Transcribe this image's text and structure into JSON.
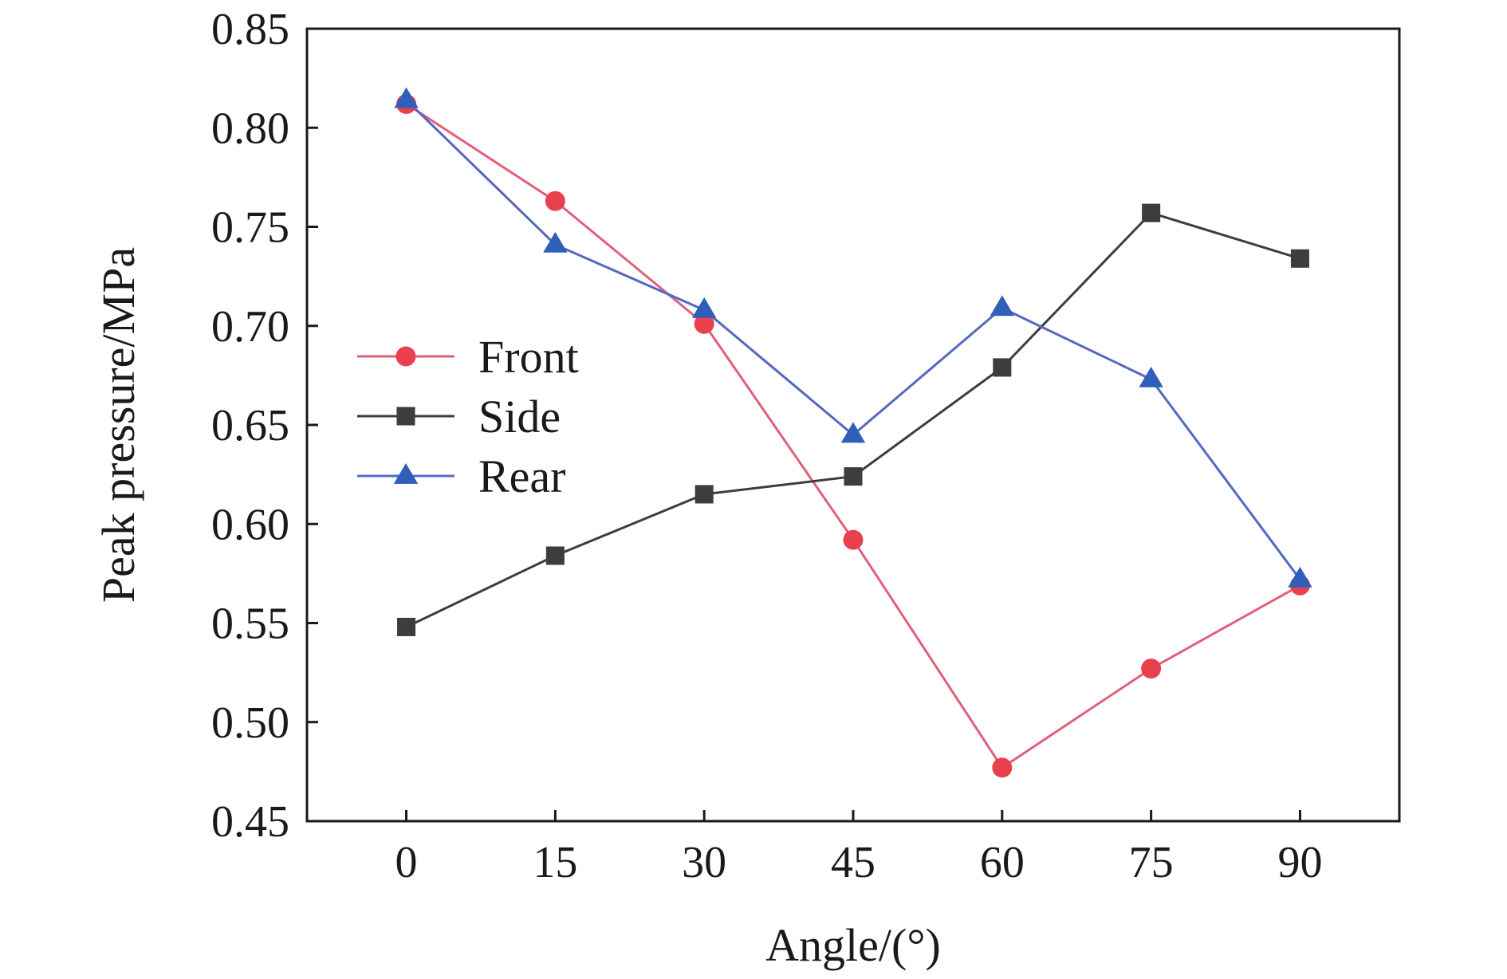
{
  "chart_data": {
    "type": "line",
    "xlabel": "Angle/(°)",
    "ylabel": "Peak pressure/MPa",
    "x": [
      0,
      15,
      30,
      45,
      60,
      75,
      90
    ],
    "xlim": [
      -10,
      100
    ],
    "ylim": [
      0.45,
      0.85
    ],
    "xticks": [
      "0",
      "15",
      "30",
      "45",
      "60",
      "75",
      "90"
    ],
    "yticks": [
      "0.45",
      "0.50",
      "0.55",
      "0.60",
      "0.65",
      "0.70",
      "0.75",
      "0.80",
      "0.85"
    ],
    "grid": false,
    "legend_position": "center-left",
    "series": [
      {
        "name": "Front",
        "marker": "circle",
        "line_color": "#e0607a",
        "marker_color": "#e8404d",
        "values": [
          0.812,
          0.763,
          0.701,
          0.592,
          0.477,
          0.527,
          0.569
        ]
      },
      {
        "name": "Side",
        "marker": "square",
        "line_color": "#3d3d3d",
        "marker_color": "#3d3d3d",
        "values": [
          0.548,
          0.584,
          0.615,
          0.624,
          0.679,
          0.757,
          0.734
        ]
      },
      {
        "name": "Rear",
        "marker": "triangle",
        "line_color": "#5568c0",
        "marker_color": "#2f5fb8",
        "values": [
          0.814,
          0.741,
          0.708,
          0.645,
          0.709,
          0.673,
          0.572
        ]
      }
    ]
  }
}
